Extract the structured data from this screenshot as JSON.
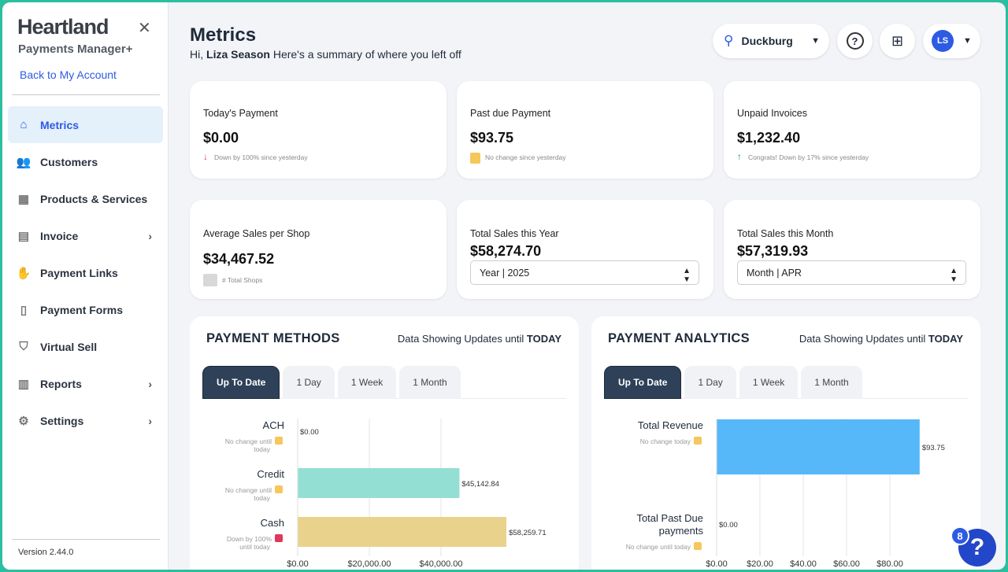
{
  "brand": {
    "name": "Heartland",
    "product": "Payments Manager+",
    "back_link": "Back to My Account",
    "version": "Version 2.44.0"
  },
  "sidebar": {
    "items": [
      {
        "label": "Metrics",
        "icon": "home-icon",
        "active": true
      },
      {
        "label": "Customers",
        "icon": "users-icon"
      },
      {
        "label": "Products & Services",
        "icon": "boxes-icon"
      },
      {
        "label": "Invoice",
        "icon": "document-icon",
        "expandable": true
      },
      {
        "label": "Payment Links",
        "icon": "hand-coin-icon"
      },
      {
        "label": "Payment Forms",
        "icon": "form-icon"
      },
      {
        "label": "Virtual Sell",
        "icon": "basket-icon"
      },
      {
        "label": "Reports",
        "icon": "report-icon",
        "expandable": true
      },
      {
        "label": "Settings",
        "icon": "gears-icon",
        "expandable": true
      }
    ]
  },
  "header": {
    "title": "Metrics",
    "greeting_prefix": "Hi,",
    "user_name": "Liza Season",
    "greeting_suffix": "Here's a summary of where you left off",
    "location": "Duckburg",
    "avatar_initials": "LS"
  },
  "cards": [
    {
      "label": "Today's Payment",
      "value": "$0.00",
      "note": "Down by 100% since yesterday",
      "trend": "down",
      "color": "#e0375a"
    },
    {
      "label": "Past due Payment",
      "value": "$93.75",
      "note": "No change since yesterday",
      "trend": "none",
      "color": "#f5c75c"
    },
    {
      "label": "Unpaid Invoices",
      "value": "$1,232.40",
      "note": "Congrats! Down by 17% since yesterday",
      "trend": "up",
      "color": "#1f8a7a"
    },
    {
      "label": "Average Sales per Shop",
      "value": "$34,467.52",
      "note": "# Total Shops"
    },
    {
      "label": "Total Sales this Year",
      "value": "$58,274.70",
      "select": "Year | 2025"
    },
    {
      "label": "Total Sales this Month",
      "value": "$57,319.93",
      "select": "Month | APR"
    }
  ],
  "panels": [
    {
      "title": "PAYMENT METHODS",
      "subtitle_prefix": "Data Showing Updates until",
      "subtitle_bold": "TODAY",
      "tabs": [
        "Up To Date",
        "1 Day",
        "1 Week",
        "1 Month"
      ],
      "active_tab": 0
    },
    {
      "title": "PAYMENT ANALYTICS",
      "subtitle_prefix": "Data Showing Updates until",
      "subtitle_bold": "TODAY",
      "tabs": [
        "Up To Date",
        "1 Day",
        "1 Week",
        "1 Month"
      ],
      "active_tab": 0
    }
  ],
  "chart_data": [
    {
      "type": "bar",
      "orientation": "horizontal",
      "categories": [
        "ACH",
        "Credit",
        "Cash"
      ],
      "values": [
        0,
        45142.84,
        58259.71
      ],
      "data_labels": [
        "$0.00",
        "$45,142.84",
        "$58,259.71"
      ],
      "notes": [
        "No change until today",
        "No change until today",
        "Down by 100% until today"
      ],
      "colors": [
        "#94dfd3",
        "#94dfd3",
        "#e9d28b"
      ],
      "xticks": [
        "$0.00",
        "$20,000.00",
        "$40,000.00"
      ],
      "xlim": [
        0,
        60000
      ],
      "grid": true
    },
    {
      "type": "bar",
      "orientation": "horizontal",
      "categories": [
        "Total Revenue",
        "Total Past Due payments"
      ],
      "values": [
        93.75,
        0
      ],
      "data_labels": [
        "$93.75",
        "$0.00"
      ],
      "notes": [
        "No change today",
        "No change until today"
      ],
      "colors": [
        "#56b7f9",
        "#56b7f9"
      ],
      "xticks": [
        "$0.00",
        "$20.00",
        "$40.00",
        "$60.00",
        "$80.00"
      ],
      "xlim": [
        0,
        100
      ],
      "grid": true
    }
  ],
  "help": {
    "badge": "8",
    "label": "?"
  }
}
